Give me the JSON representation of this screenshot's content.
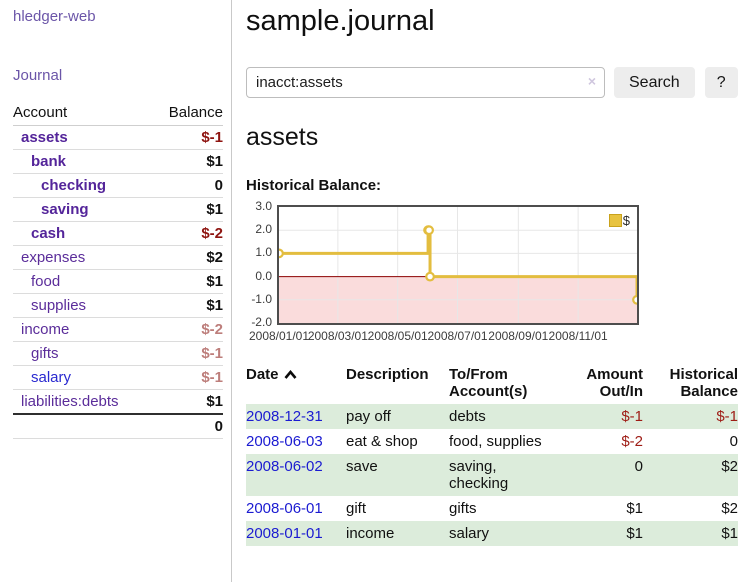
{
  "sidebar": {
    "app_title": "hledger-web",
    "journal_label": "Journal",
    "table": {
      "headers": {
        "account": "Account",
        "balance": "Balance"
      },
      "accounts": [
        {
          "name": "assets",
          "balance": "$-1",
          "depth": 1,
          "emph": true,
          "neg": "strong"
        },
        {
          "name": "bank",
          "balance": "$1",
          "depth": 2,
          "emph": true
        },
        {
          "name": "checking",
          "balance": "0",
          "depth": 3,
          "emph": true
        },
        {
          "name": "saving",
          "balance": "$1",
          "depth": 3,
          "emph": true
        },
        {
          "name": "cash",
          "balance": "$-2",
          "depth": 2,
          "emph": true,
          "neg": "strong"
        },
        {
          "name": "expenses",
          "balance": "$2",
          "depth": 1
        },
        {
          "name": "food",
          "balance": "$1",
          "depth": 2
        },
        {
          "name": "supplies",
          "balance": "$1",
          "depth": 2
        },
        {
          "name": "income",
          "balance": "$-2",
          "depth": 1,
          "neg": "soft"
        },
        {
          "name": "gifts",
          "balance": "$-1",
          "depth": 2,
          "neg": "soft"
        },
        {
          "name": "salary",
          "balance": "$-1",
          "depth": 2,
          "neg": "soft",
          "link": "blue"
        },
        {
          "name": "liabilities:debts",
          "balance": "$1",
          "depth": 1
        }
      ],
      "total": "0"
    }
  },
  "main": {
    "title": "sample.journal",
    "search": {
      "value": "inacct:assets",
      "clear_icon": "×",
      "search_label": "Search",
      "help_label": "?"
    },
    "account_heading": "assets",
    "chart_label": "Historical Balance:",
    "table": {
      "headers": [
        "Date",
        "Description",
        "To/From Account(s)",
        "Amount Out/In",
        "Historical Balance"
      ],
      "rows": [
        {
          "date": "2008-12-31",
          "description": "pay off",
          "accounts": "debts",
          "amount": "$-1",
          "balance": "$-1"
        },
        {
          "date": "2008-06-03",
          "description": "eat & shop",
          "accounts": "food, supplies",
          "amount": "$-2",
          "balance": "0"
        },
        {
          "date": "2008-06-02",
          "description": "save",
          "accounts": "saving, checking",
          "amount": "0",
          "balance": "$2"
        },
        {
          "date": "2008-06-01",
          "description": "gift",
          "accounts": "gifts",
          "amount": "$1",
          "balance": "$2"
        },
        {
          "date": "2008-01-01",
          "description": "income",
          "accounts": "salary",
          "amount": "$1",
          "balance": "$1"
        }
      ]
    }
  },
  "chart_data": {
    "type": "line",
    "title": "Historical Balance:",
    "step": true,
    "series": [
      {
        "name": "$",
        "color": "#e3bd3f",
        "points": [
          {
            "x": "2008/01/01",
            "day": 0,
            "y": 1
          },
          {
            "x": "2008/06/01",
            "day": 152,
            "y": 2
          },
          {
            "x": "2008/06/02",
            "day": 153,
            "y": 2
          },
          {
            "x": "2008/06/03",
            "day": 154,
            "y": 0
          },
          {
            "x": "2008/12/31",
            "day": 365,
            "y": -1
          }
        ]
      }
    ],
    "xlim_days": [
      0,
      365
    ],
    "ylim": [
      -2,
      3
    ],
    "y_ticks": [
      3.0,
      2.0,
      1.0,
      0.0,
      -1.0,
      -2.0
    ],
    "x_ticks": [
      {
        "label": "2008/01/01",
        "day": 0
      },
      {
        "label": "2008/03/01",
        "day": 60
      },
      {
        "label": "2008/05/01",
        "day": 121
      },
      {
        "label": "2008/07/01",
        "day": 182
      },
      {
        "label": "2008/09/01",
        "day": 244
      },
      {
        "label": "2008/11/01",
        "day": 305
      }
    ],
    "legend": {
      "label": "$",
      "position": "top-right"
    },
    "grid": true,
    "colors": {
      "line": "#e3bd3f",
      "marker_fill": "#ffffff",
      "zero_line": "#8b0000",
      "negative_region": "#fadcdc",
      "gridline": "#e7e7e7",
      "border": "#4d4d4d"
    }
  }
}
